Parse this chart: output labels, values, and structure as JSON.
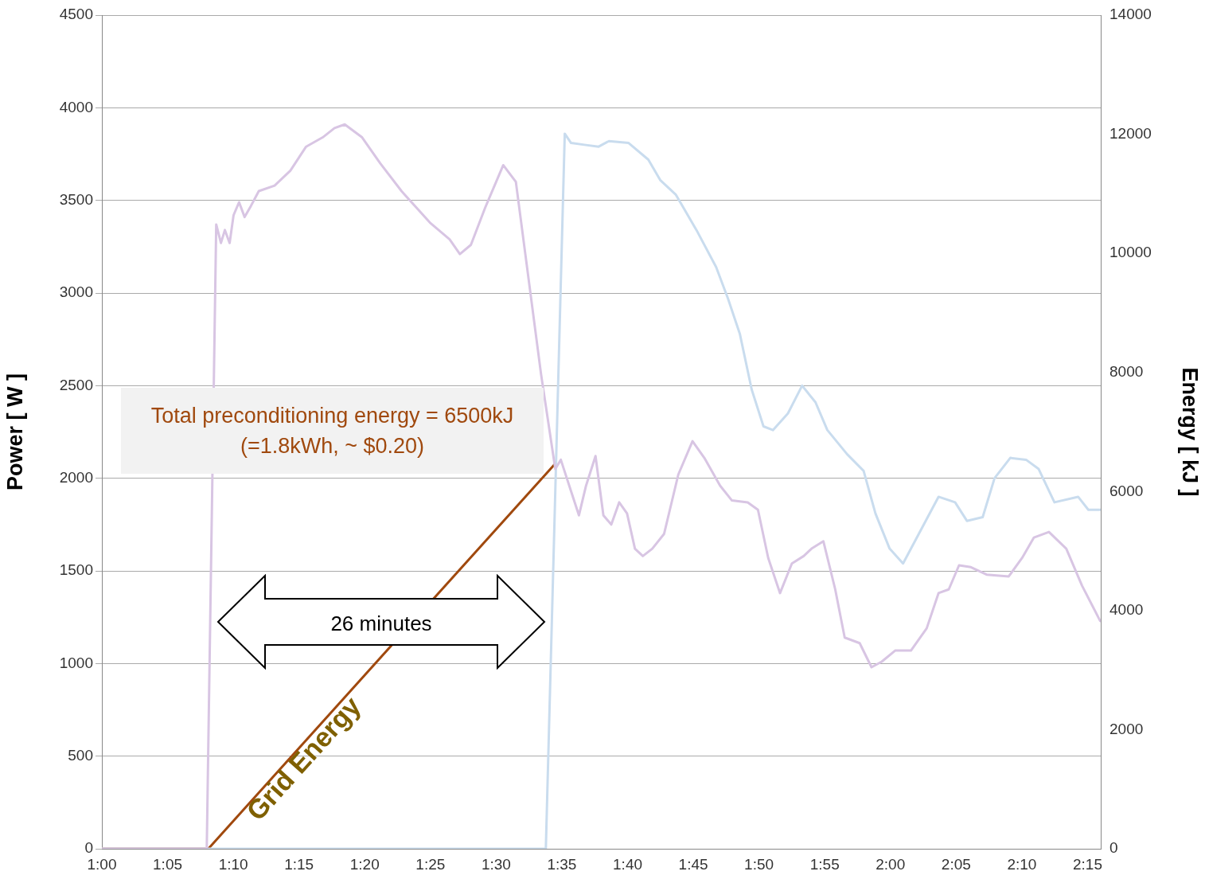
{
  "chart_data": {
    "type": "line",
    "xlim": [
      1,
      2.2667
    ],
    "xticks": [
      {
        "value": 1,
        "label": "1:00"
      },
      {
        "value": 1.0833,
        "label": "1:05"
      },
      {
        "value": 1.1667,
        "label": "1:10"
      },
      {
        "value": 1.25,
        "label": "1:15"
      },
      {
        "value": 1.3333,
        "label": "1:20"
      },
      {
        "value": 1.4167,
        "label": "1:25"
      },
      {
        "value": 1.5,
        "label": "1:30"
      },
      {
        "value": 1.5833,
        "label": "1:35"
      },
      {
        "value": 1.6667,
        "label": "1:40"
      },
      {
        "value": 1.75,
        "label": "1:45"
      },
      {
        "value": 1.8333,
        "label": "1:50"
      },
      {
        "value": 1.9167,
        "label": "1:55"
      },
      {
        "value": 2,
        "label": "2:00"
      },
      {
        "value": 2.0833,
        "label": "2:05"
      },
      {
        "value": 2.1667,
        "label": "2:10"
      },
      {
        "value": 2.25,
        "label": "2:15"
      }
    ],
    "ylim": [
      0,
      4500
    ],
    "yticks": [
      0,
      500,
      1000,
      1500,
      2000,
      2500,
      3000,
      3500,
      4000,
      4500
    ],
    "y2lim": [
      0,
      14000
    ],
    "y2ticks": [
      0,
      2000,
      4000,
      6000,
      8000,
      10000,
      12000,
      14000
    ],
    "ylabel": "Power [ W ]",
    "y2label": "Energy [ kJ ]",
    "grid": "y",
    "marker": "none",
    "series": [
      {
        "color": "#d8c5e3",
        "x": [
          1.0,
          1.133,
          1.145,
          1.151,
          1.156,
          1.162,
          1.167,
          1.174,
          1.181,
          1.189,
          1.199,
          1.219,
          1.239,
          1.259,
          1.28,
          1.295,
          1.308,
          1.33,
          1.353,
          1.38,
          1.416,
          1.441,
          1.454,
          1.468,
          1.486,
          1.509,
          1.525,
          1.537,
          1.557,
          1.575,
          1.582,
          1.595,
          1.605,
          1.614,
          1.626,
          1.636,
          1.646,
          1.656,
          1.666,
          1.676,
          1.686,
          1.698,
          1.713,
          1.731,
          1.749,
          1.764,
          1.784,
          1.799,
          1.819,
          1.832,
          1.845,
          1.86,
          1.875,
          1.89,
          1.9,
          1.915,
          1.93,
          1.942,
          1.961,
          1.976,
          1.989,
          2.006,
          2.026,
          2.046,
          2.061,
          2.074,
          2.087,
          2.102,
          2.122,
          2.15,
          2.167,
          2.182,
          2.201,
          2.223,
          2.243,
          2.266
        ],
        "values": [
          0,
          0,
          3370,
          3270,
          3340,
          3270,
          3420,
          3490,
          3410,
          3470,
          3550,
          3580,
          3660,
          3790,
          3840,
          3890,
          3910,
          3840,
          3700,
          3550,
          3380,
          3290,
          3210,
          3260,
          3460,
          3690,
          3600,
          3210,
          2560,
          2050,
          2100,
          1930,
          1800,
          1960,
          2120,
          1800,
          1750,
          1870,
          1810,
          1620,
          1580,
          1620,
          1700,
          2020,
          2200,
          2110,
          1960,
          1880,
          1870,
          1830,
          1570,
          1380,
          1540,
          1580,
          1620,
          1660,
          1400,
          1140,
          1110,
          980,
          1010,
          1070,
          1070,
          1190,
          1380,
          1400,
          1530,
          1520,
          1480,
          1470,
          1570,
          1680,
          1710,
          1620,
          1420,
          1230
        ]
      },
      {
        "color": "#c9dcee",
        "x": [
          1.0,
          1.563,
          1.587,
          1.595,
          1.612,
          1.63,
          1.643,
          1.668,
          1.693,
          1.708,
          1.728,
          1.754,
          1.779,
          1.794,
          1.809,
          1.824,
          1.839,
          1.851,
          1.87,
          1.888,
          1.905,
          1.92,
          1.945,
          1.966,
          1.981,
          1.999,
          2.016,
          2.036,
          2.061,
          2.082,
          2.097,
          2.117,
          2.132,
          2.152,
          2.172,
          2.188,
          2.208,
          2.238,
          2.251,
          2.266
        ],
        "values": [
          0,
          0,
          3860,
          3810,
          3800,
          3790,
          3820,
          3810,
          3720,
          3610,
          3530,
          3340,
          3140,
          2970,
          2780,
          2480,
          2280,
          2260,
          2350,
          2500,
          2410,
          2260,
          2130,
          2040,
          1810,
          1620,
          1540,
          1700,
          1900,
          1870,
          1770,
          1790,
          2000,
          2110,
          2100,
          2050,
          1870,
          1900,
          1830,
          1830
        ]
      },
      {
        "name": "Grid Energy",
        "color": "#a0490e",
        "axis": "y2",
        "x": [
          1.0,
          1.135,
          1.575
        ],
        "values": [
          0,
          0,
          6470
        ]
      }
    ],
    "annotations": [
      "Total preconditioning energy = 6500kJ\n(=1.8kWh, ~ $0.20)",
      "26 minutes"
    ]
  }
}
